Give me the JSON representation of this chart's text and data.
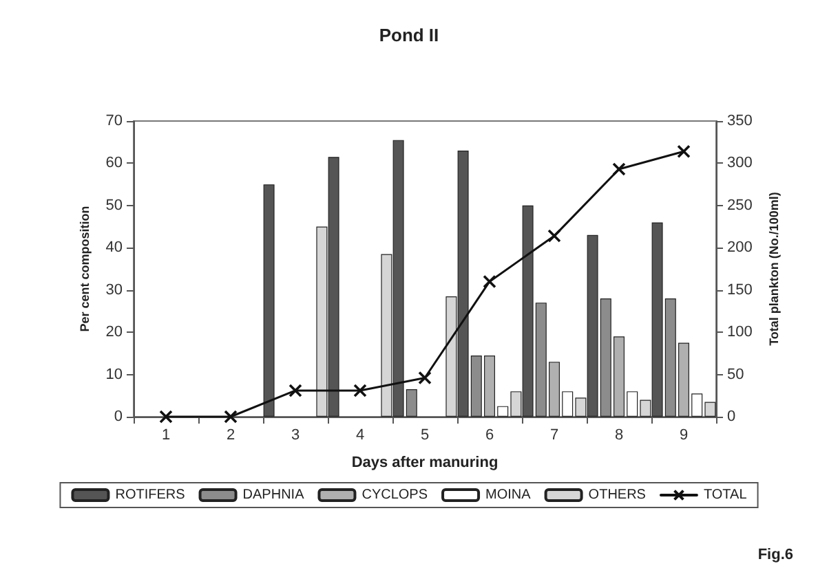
{
  "chart_data": {
    "type": "bar",
    "title": "Pond II",
    "xlabel": "Days after manuring",
    "ylabel": "Per cent composition",
    "y2label": "Total plankton (No./100ml)",
    "categories": [
      "1",
      "2",
      "3",
      "4",
      "5",
      "6",
      "7",
      "8",
      "9"
    ],
    "series": [
      {
        "name": "ROTIFERS",
        "color": "#555555",
        "values": [
          null,
          null,
          55,
          61.5,
          65.5,
          63,
          50,
          43,
          46
        ]
      },
      {
        "name": "DAPHNIA",
        "color": "#8c8c8c",
        "values": [
          null,
          null,
          null,
          null,
          6.5,
          14.5,
          27,
          28,
          28
        ]
      },
      {
        "name": "CYCLOPS",
        "color": "#b0b0b0",
        "values": [
          null,
          null,
          null,
          null,
          null,
          14.5,
          13,
          19,
          17.5
        ]
      },
      {
        "name": "MOINA",
        "color": "#ffffff",
        "values": [
          null,
          null,
          null,
          null,
          null,
          2.5,
          6,
          6,
          5.5
        ]
      },
      {
        "name": "OTHERS",
        "color": "#d6d6d6",
        "values": [
          null,
          null,
          45,
          38.5,
          28.5,
          6,
          4.5,
          4,
          3.5
        ]
      },
      {
        "name": "TOTAL",
        "type": "line",
        "axis": "y2",
        "color": "#111111",
        "values": [
          0,
          0,
          31,
          31,
          46,
          160,
          214,
          293,
          314
        ]
      }
    ],
    "ylim": [
      0,
      70
    ],
    "yticks": [
      0,
      10,
      20,
      30,
      40,
      50,
      60,
      70
    ],
    "y2lim": [
      0,
      350
    ],
    "y2ticks": [
      0,
      50,
      100,
      150,
      200,
      250,
      300,
      350
    ],
    "marker": "cross",
    "line_style": "solid",
    "grid": false,
    "legend": "bottom",
    "annotations": [
      "Fig.6"
    ]
  }
}
